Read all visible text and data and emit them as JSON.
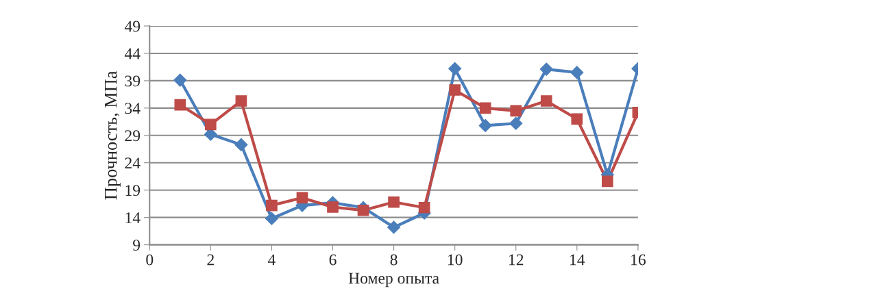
{
  "chart_data": {
    "type": "line",
    "xlabel": "Номер опыта",
    "ylabel": "Прочность, МПа",
    "x": [
      1,
      2,
      3,
      4,
      5,
      6,
      7,
      8,
      9,
      10,
      11,
      12,
      13,
      14,
      15,
      16
    ],
    "series": [
      {
        "color": "#4a7ebb",
        "marker": "diamond",
        "values": [
          39.1,
          29.2,
          27.3,
          13.8,
          16.2,
          16.7,
          15.8,
          12.2,
          14.8,
          41.2,
          30.8,
          31.2,
          41.1,
          40.5,
          21.8,
          41.2
        ]
      },
      {
        "color": "#be4b48",
        "marker": "square",
        "values": [
          34.6,
          31.0,
          35.3,
          16.2,
          17.6,
          15.9,
          15.3,
          16.8,
          15.8,
          37.3,
          34.0,
          33.5,
          35.3,
          32.0,
          20.6,
          33.2
        ]
      }
    ],
    "xlim": [
      0,
      16
    ],
    "xticks": [
      0,
      2,
      4,
      6,
      8,
      10,
      12,
      14,
      16
    ],
    "ylim": [
      9,
      49
    ],
    "yticks": [
      9,
      14,
      19,
      24,
      29,
      34,
      39,
      44,
      49
    ],
    "grid": "y",
    "line_style": "solid"
  }
}
